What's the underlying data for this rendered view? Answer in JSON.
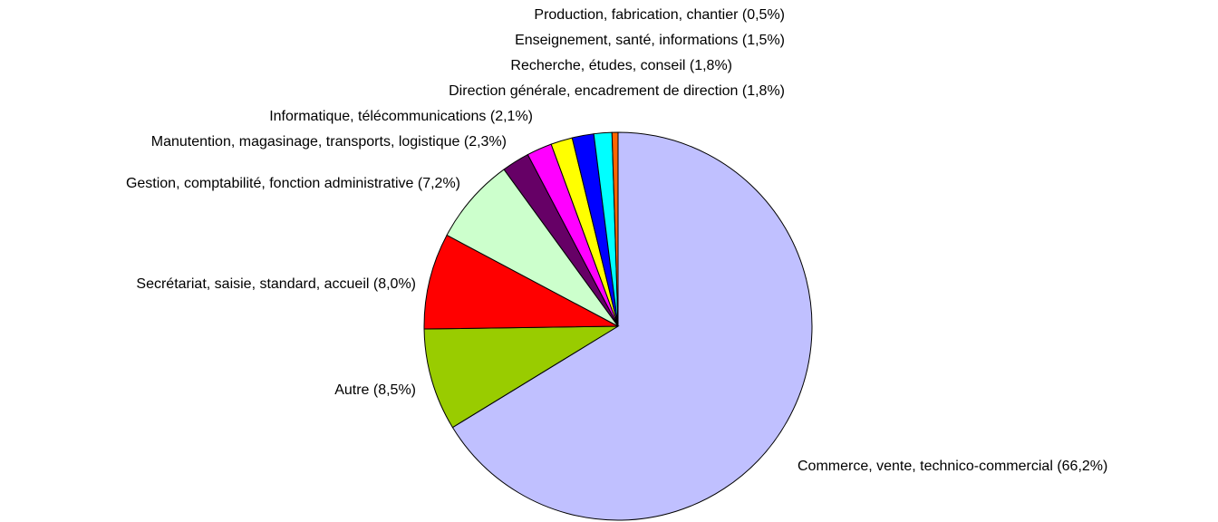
{
  "chart_data": {
    "type": "pie",
    "labels": [
      "Commerce, vente, technico-commercial (66,2%)",
      "Autre (8,5%)",
      "Secrétariat, saisie, standard, accueil (8,0%)",
      "Gestion, comptabilité, fonction administrative (7,2%)",
      "Manutention, magasinage, transports, logistique (2,3%)",
      "Informatique, télécommunications (2,1%)",
      "Direction générale, encadrement de direction (1,8%)",
      "Recherche, études, conseil (1,8%)",
      "Enseignement, santé, informations (1,5%)",
      "Production, fabrication, chantier (0,5%)"
    ],
    "values": [
      66.2,
      8.5,
      8.0,
      7.2,
      2.3,
      2.1,
      1.8,
      1.8,
      1.5,
      0.5
    ],
    "colors": [
      "#c0c0ff",
      "#99cc00",
      "#ff0000",
      "#ccffcc",
      "#660066",
      "#ff00ff",
      "#ffff00",
      "#0000ff",
      "#00ffff",
      "#ff6600"
    ]
  }
}
